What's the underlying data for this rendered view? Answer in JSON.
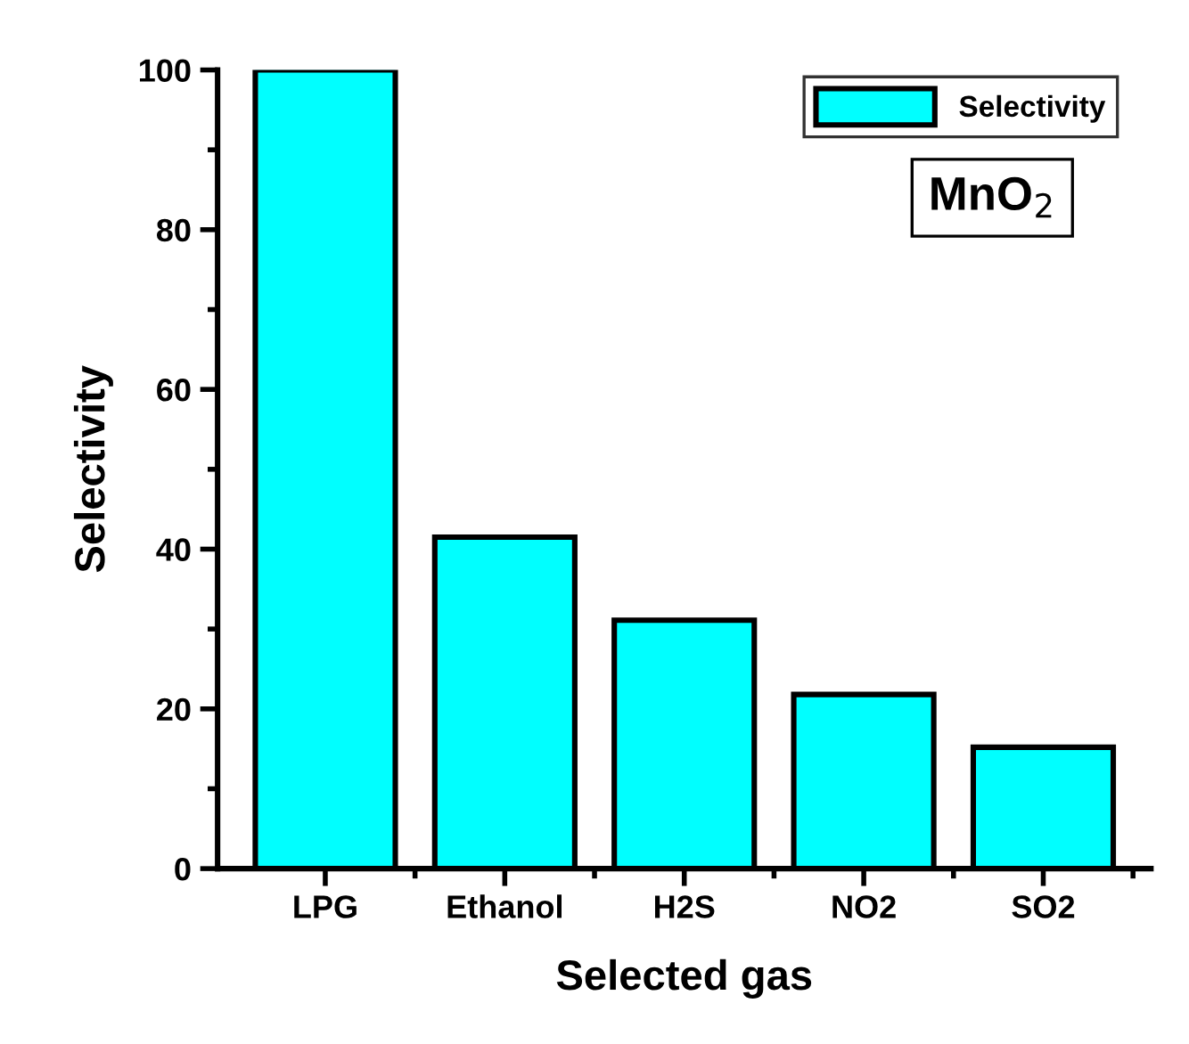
{
  "chart_data": {
    "type": "bar",
    "xlabel": "Selected gas",
    "ylabel": "Selectivity",
    "categories": [
      "LPG",
      "Ethanol",
      "H2S",
      "NO2",
      "SO2"
    ],
    "series": [
      {
        "name": "Selectivity",
        "color": "#00ffff",
        "values": [
          100,
          41.5,
          31.1,
          21.8,
          15.2
        ]
      }
    ],
    "ylim": [
      0,
      100
    ],
    "yticks": [
      0,
      20,
      40,
      60,
      80,
      100
    ],
    "grid": false,
    "legend": "top right",
    "annotations": [
      "MnO$_{2}$"
    ]
  }
}
